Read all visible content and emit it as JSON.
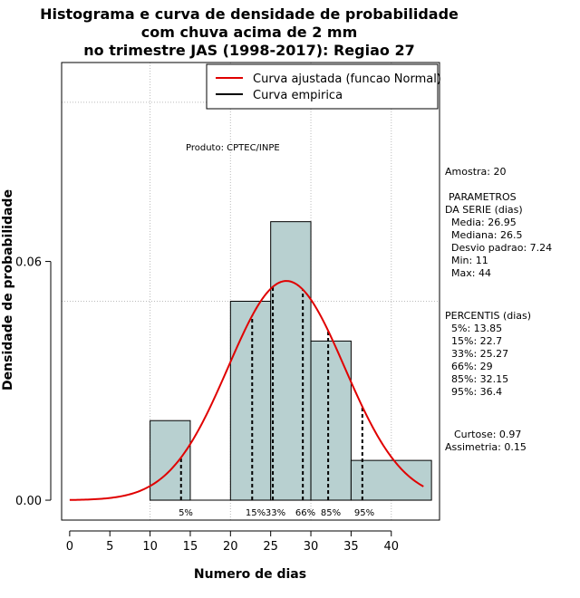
{
  "chart_data": {
    "type": "bar",
    "title_lines": [
      "Histograma e curva de densidade de probabilidade",
      "com chuva acima de 2 mm",
      "no trimestre JAS (1998-2017): Regiao 27"
    ],
    "xlabel": "Numero de dias",
    "ylabel": "Densidade de probabilidade",
    "xlim": [
      -1,
      46
    ],
    "ylim": [
      -0.005,
      0.11
    ],
    "x_ticks": [
      "0",
      "5",
      "10",
      "15",
      "20",
      "25",
      "30",
      "35",
      "40"
    ],
    "y_ticks": [
      "0.00",
      "0.06"
    ],
    "grid": true,
    "bins": [
      {
        "start": 10,
        "end": 15,
        "density": 0.02
      },
      {
        "start": 15,
        "end": 20,
        "density": 0.0
      },
      {
        "start": 20,
        "end": 25,
        "density": 0.05
      },
      {
        "start": 25,
        "end": 30,
        "density": 0.07
      },
      {
        "start": 30,
        "end": 35,
        "density": 0.04
      },
      {
        "start": 35,
        "end": 45,
        "density": 0.01
      }
    ],
    "normal_curve": {
      "mean": 26.95,
      "sd": 7.24,
      "x_start": 0,
      "x_end": 44
    },
    "percentile_marks": [
      {
        "label": "5%",
        "value": 13.85
      },
      {
        "label": "15%",
        "value": 22.7
      },
      {
        "label": "33%",
        "value": 25.27
      },
      {
        "label": "66%",
        "value": 29
      },
      {
        "label": "85%",
        "value": 32.15
      },
      {
        "label": "95%",
        "value": 36.4
      }
    ],
    "legend": {
      "position": "top-right",
      "items": [
        {
          "label": "Curva ajustada (funcao Normal)",
          "color": "#e00000"
        },
        {
          "label": "Curva empirica",
          "color": "#000000"
        }
      ]
    },
    "colors": {
      "bar_fill": "#b8d0d0",
      "curve": "#e00000",
      "grid": "#bbbbbb"
    },
    "credit": "Produto: CPTEC/INPE",
    "stats": {
      "amostra": "Amostra: 20",
      "parametros_title_1": "PARAMETROS",
      "parametros_title_2": "DA SERIE (dias)",
      "media": "Media: 26.95",
      "mediana": "Mediana: 26.5",
      "desvio": "Desvio padrao: 7.24",
      "min": "Min: 11",
      "max": "Max: 44",
      "percentis_title": "PERCENTIS (dias)",
      "p5": "5%: 13.85",
      "p15": "15%: 22.7",
      "p33": "33%: 25.27",
      "p66": "66%: 29",
      "p85": "85%: 32.15",
      "p95": "95%: 36.4",
      "curtose": "Curtose: 0.97",
      "assimetria": "Assimetria: 0.15"
    }
  }
}
